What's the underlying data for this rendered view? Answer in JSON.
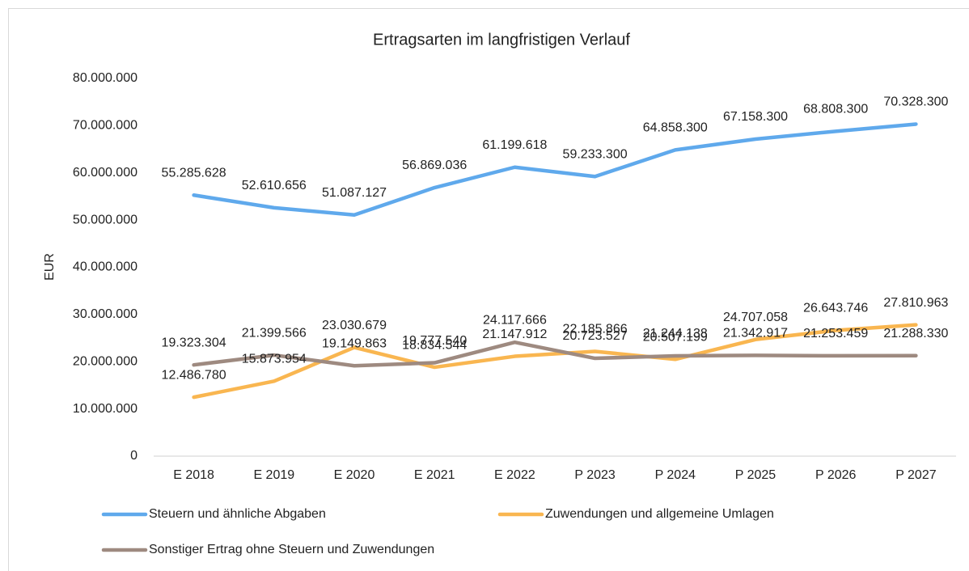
{
  "chart_data": {
    "type": "line",
    "title": "Ertragsarten im langfristigen Verlauf",
    "y_label": "EUR",
    "categories": [
      "E 2018",
      "E 2019",
      "E 2020",
      "E 2021",
      "E 2022",
      "P 2023",
      "P 2024",
      "P 2025",
      "P 2026",
      "P 2027"
    ],
    "series": [
      {
        "name": "Steuern und ähnliche Abgaben",
        "color": "#5fa9ec",
        "values": [
          55285628,
          52610656,
          51087127,
          56869036,
          61199618,
          59233300,
          64858300,
          67158300,
          68808300,
          70328300
        ],
        "value_labels": [
          "55.285.628",
          "52.610.656",
          "51.087.127",
          "56.869.036",
          "61.199.618",
          "59.233.300",
          "64.858.300",
          "67.158.300",
          "68.808.300",
          "70.328.300"
        ]
      },
      {
        "name": "Zuwendungen und allgemeine Umlagen",
        "color": "#f9b650",
        "values": [
          12486780,
          15873954,
          23030679,
          18834544,
          21147912,
          22185866,
          20507199,
          24707058,
          26643746,
          27810963
        ],
        "value_labels": [
          "12.486.780",
          "15.873.954",
          "23.030.679",
          "18.834.544",
          "21.147.912",
          "22.185.866",
          "20.507.199",
          "24.707.058",
          "26.643.746",
          "27.810.963"
        ]
      },
      {
        "name": "Sonstiger Ertrag ohne Steuern und Zuwendungen",
        "color": "#9e8a80",
        "values": [
          19323304,
          21399566,
          19149863,
          19777540,
          24117666,
          20723527,
          21244138,
          21342917,
          21253459,
          21288330
        ],
        "value_labels": [
          "19.323.304",
          "21.399.566",
          "19.149.863",
          "19.777.540",
          "24.117.666",
          "20.723.527",
          "21.244.138",
          "21.342.917",
          "21.253.459",
          "21.288.330"
        ]
      }
    ],
    "ylim": [
      0,
      80000000
    ],
    "yticks": [
      0,
      {
        "value": 10000000,
        "label": "10.000.000"
      },
      {
        "value": 20000000,
        "label": "20.000.000"
      },
      {
        "value": 30000000,
        "label": "30.000.000"
      },
      {
        "value": 40000000,
        "label": "40.000.000"
      },
      {
        "value": 50000000,
        "label": "50.000.000"
      },
      {
        "value": 60000000,
        "label": "60.000.000"
      },
      {
        "value": 70000000,
        "label": "70.000.000"
      },
      {
        "value": 80000000,
        "label": "80.000.000"
      }
    ],
    "grid": false,
    "legend": "bottom"
  }
}
